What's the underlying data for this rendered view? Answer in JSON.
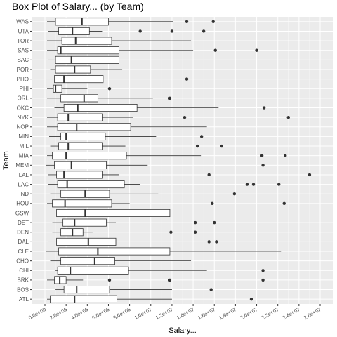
{
  "chart_data": {
    "type": "boxplot",
    "title": "Box Plot of Salary... (by Team)",
    "xlabel": "Salary...",
    "ylabel": "Team",
    "orientation": "horizontal",
    "xlim": [
      0,
      26000000
    ],
    "x_ticks": [
      0,
      2000000,
      4000000,
      6000000,
      8000000,
      10000000,
      12000000,
      14000000,
      16000000,
      18000000,
      20000000,
      22000000,
      24000000,
      26000000
    ],
    "x_tick_labels": [
      "0.0e+00",
      "2.0e+06",
      "4.0e+06",
      "6.0e+06",
      "8.0e+06",
      "1.0e+07",
      "1.2e+07",
      "1.4e+07",
      "1.6e+07",
      "1.8e+07",
      "2.0e+07",
      "2.2e+07",
      "2.4e+07",
      "2.6e+07"
    ],
    "grid": true,
    "panel_background": "#ebebeb",
    "colors": {
      "box_fill": "#ffffff",
      "box_stroke": "#333333",
      "outlier": "#333333",
      "grid": "#ffffff"
    },
    "teams": [
      {
        "team": "ATL",
        "min": 200000,
        "q1": 500000,
        "median": 2800000,
        "q3": 6800000,
        "max": 12000000,
        "outliers": [
          19500000
        ]
      },
      {
        "team": "BOS",
        "min": 1000000,
        "q1": 1800000,
        "median": 3000000,
        "q3": 6100000,
        "max": 12000000,
        "outliers": [
          15700000
        ]
      },
      {
        "team": "BRK",
        "min": 200000,
        "q1": 900000,
        "median": 1400000,
        "q3": 2000000,
        "max": 3600000,
        "outliers": [
          6100000,
          11800000,
          20600000
        ]
      },
      {
        "team": "CHI",
        "min": 1000000,
        "q1": 1200000,
        "median": 2400000,
        "q3": 7900000,
        "max": 15300000,
        "outliers": [
          20600000
        ]
      },
      {
        "team": "CHO",
        "min": 500000,
        "q1": 1500000,
        "median": 4700000,
        "q3": 6600000,
        "max": 13800000,
        "outliers": []
      },
      {
        "team": "CLE",
        "min": 100000,
        "q1": 1300000,
        "median": 5000000,
        "q3": 11800000,
        "max": 22300000,
        "outliers": []
      },
      {
        "team": "DAL",
        "min": 300000,
        "q1": 1100000,
        "median": 4100000,
        "q3": 6700000,
        "max": 8300000,
        "outliers": [
          15500000,
          16200000
        ]
      },
      {
        "team": "DEN",
        "min": 700000,
        "q1": 1500000,
        "median": 2600000,
        "q3": 3600000,
        "max": 4500000,
        "outliers": [
          11900000,
          14200000
        ]
      },
      {
        "team": "DET",
        "min": 700000,
        "q1": 1700000,
        "median": 2800000,
        "q3": 5800000,
        "max": 6700000,
        "outliers": [
          14200000,
          16000000
        ]
      },
      {
        "team": "GSW",
        "min": 200000,
        "q1": 1100000,
        "median": 3800000,
        "q3": 11800000,
        "max": 15500000,
        "outliers": []
      },
      {
        "team": "HOU",
        "min": 200000,
        "q1": 700000,
        "median": 1900000,
        "q3": 6300000,
        "max": 8000000,
        "outliers": [
          15800000,
          22600000
        ]
      },
      {
        "team": "IND",
        "min": 500000,
        "q1": 1500000,
        "median": 3800000,
        "q3": 6100000,
        "max": 10700000,
        "outliers": [
          17900000
        ]
      },
      {
        "team": "LAC",
        "min": 300000,
        "q1": 1200000,
        "median": 2100000,
        "q3": 7500000,
        "max": 9000000,
        "outliers": [
          19100000,
          19700000,
          22100000
        ]
      },
      {
        "team": "LAL",
        "min": 300000,
        "q1": 1100000,
        "median": 1800000,
        "q3": 5400000,
        "max": 7000000,
        "outliers": [
          15500000,
          25000000
        ]
      },
      {
        "team": "MEM",
        "min": 100000,
        "q1": 900000,
        "median": 2500000,
        "q3": 5800000,
        "max": 9700000,
        "outliers": [
          20600000
        ]
      },
      {
        "team": "MIA",
        "min": 200000,
        "q1": 700000,
        "median": 2000000,
        "q3": 7700000,
        "max": 14800000,
        "outliers": [
          20500000,
          22700000
        ]
      },
      {
        "team": "MIL",
        "min": 500000,
        "q1": 1300000,
        "median": 2200000,
        "q3": 5400000,
        "max": 7600000,
        "outliers": [
          14400000,
          16700000
        ]
      },
      {
        "team": "MIN",
        "min": 400000,
        "q1": 1500000,
        "median": 2000000,
        "q3": 5700000,
        "max": 10500000,
        "outliers": [
          14800000
        ]
      },
      {
        "team": "NOP",
        "min": 200000,
        "q1": 1200000,
        "median": 3000000,
        "q3": 8100000,
        "max": 15300000,
        "outliers": []
      },
      {
        "team": "NYK",
        "min": 200000,
        "q1": 1200000,
        "median": 2200000,
        "q3": 5400000,
        "max": 8300000,
        "outliers": [
          13200000,
          23000000
        ]
      },
      {
        "team": "OKC",
        "min": 900000,
        "q1": 1800000,
        "median": 3100000,
        "q3": 8700000,
        "max": 16400000,
        "outliers": [
          20700000
        ]
      },
      {
        "team": "ORL",
        "min": 200000,
        "q1": 1500000,
        "median": 3700000,
        "q3": 5000000,
        "max": 10200000,
        "outliers": [
          11800000
        ]
      },
      {
        "team": "PHI",
        "min": 200000,
        "q1": 800000,
        "median": 1000000,
        "q3": 1600000,
        "max": 4000000,
        "outliers": [
          6100000
        ]
      },
      {
        "team": "PHO",
        "min": 100000,
        "q1": 900000,
        "median": 1800000,
        "q3": 5500000,
        "max": 12000000,
        "outliers": [
          13400000
        ]
      },
      {
        "team": "POR",
        "min": 500000,
        "q1": 1000000,
        "median": 2800000,
        "q3": 4300000,
        "max": 7300000,
        "outliers": []
      },
      {
        "team": "SAC",
        "min": 300000,
        "q1": 1000000,
        "median": 2500000,
        "q3": 7000000,
        "max": 15700000,
        "outliers": []
      },
      {
        "team": "SAS",
        "min": 200000,
        "q1": 1200000,
        "median": 1500000,
        "q3": 7000000,
        "max": 14000000,
        "outliers": [
          16100000,
          20000000
        ]
      },
      {
        "team": "TOR",
        "min": 200000,
        "q1": 1600000,
        "median": 2900000,
        "q3": 6300000,
        "max": 13800000,
        "outliers": []
      },
      {
        "team": "UTA",
        "min": 300000,
        "q1": 1300000,
        "median": 2600000,
        "q3": 4200000,
        "max": 5400000,
        "outliers": [
          9000000,
          12000000,
          15000000
        ]
      },
      {
        "team": "WAS",
        "min": 200000,
        "q1": 1000000,
        "median": 3500000,
        "q3": 6000000,
        "max": 12100000,
        "outliers": [
          13400000,
          15900000
        ]
      }
    ]
  }
}
